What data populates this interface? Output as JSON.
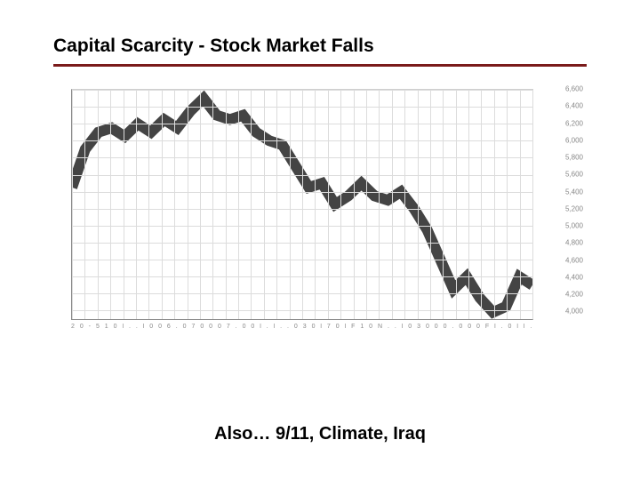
{
  "title": "Capital Scarcity - Stock Market Falls",
  "caption": "Also… 9/11, Climate, Iraq",
  "rule_color": "#7a1a1a",
  "chart": {
    "type": "line",
    "background_color": "#ffffff",
    "grid_color": "#dcdcdc",
    "axis_color": "#888888",
    "line_color": "#444444",
    "line_width": 1.2,
    "ylim": [
      3900,
      6600
    ],
    "ytick_step": 200,
    "yticks": [
      4000,
      4200,
      4400,
      4600,
      4800,
      5000,
      5200,
      5400,
      5600,
      5800,
      6000,
      6200,
      6400,
      6600
    ],
    "ytick_labels": [
      "4,000",
      "4,200",
      "4,400",
      "4,600",
      "4,800",
      "5,000",
      "5,200",
      "5,400",
      "5,600",
      "5,800",
      "6,000",
      "6,200",
      "6,400",
      "6,600"
    ],
    "x_count": 36,
    "xlabel_raw": "  2 0 - 5   1   0   l  .   .   l   0   0   6 . 0 7 0 0 0   7 . 0   0   l   .   l  .   .   0   3   0   l   7    0 l  F   1   0   N .  .   l   0   3   0   0   0 . 0 0 0  F l   .   0   l   l   .   l   0   6   0   l   0   5 0  F   l   .   0   l   .   l  .   l   .   0   0",
    "series": [
      {
        "name": "index",
        "values": [
          5450,
          5900,
          6100,
          6150,
          6050,
          6200,
          6100,
          6250,
          6150,
          6350,
          6500,
          6300,
          6250,
          6300,
          6100,
          6000,
          5950,
          5700,
          5450,
          5500,
          5250,
          5350,
          5500,
          5350,
          5300,
          5400,
          5200,
          4950,
          4600,
          4250,
          4400,
          4150,
          3980,
          4050,
          4400,
          4300
        ]
      }
    ],
    "label_fontsize": 8,
    "label_color": "#888888"
  }
}
